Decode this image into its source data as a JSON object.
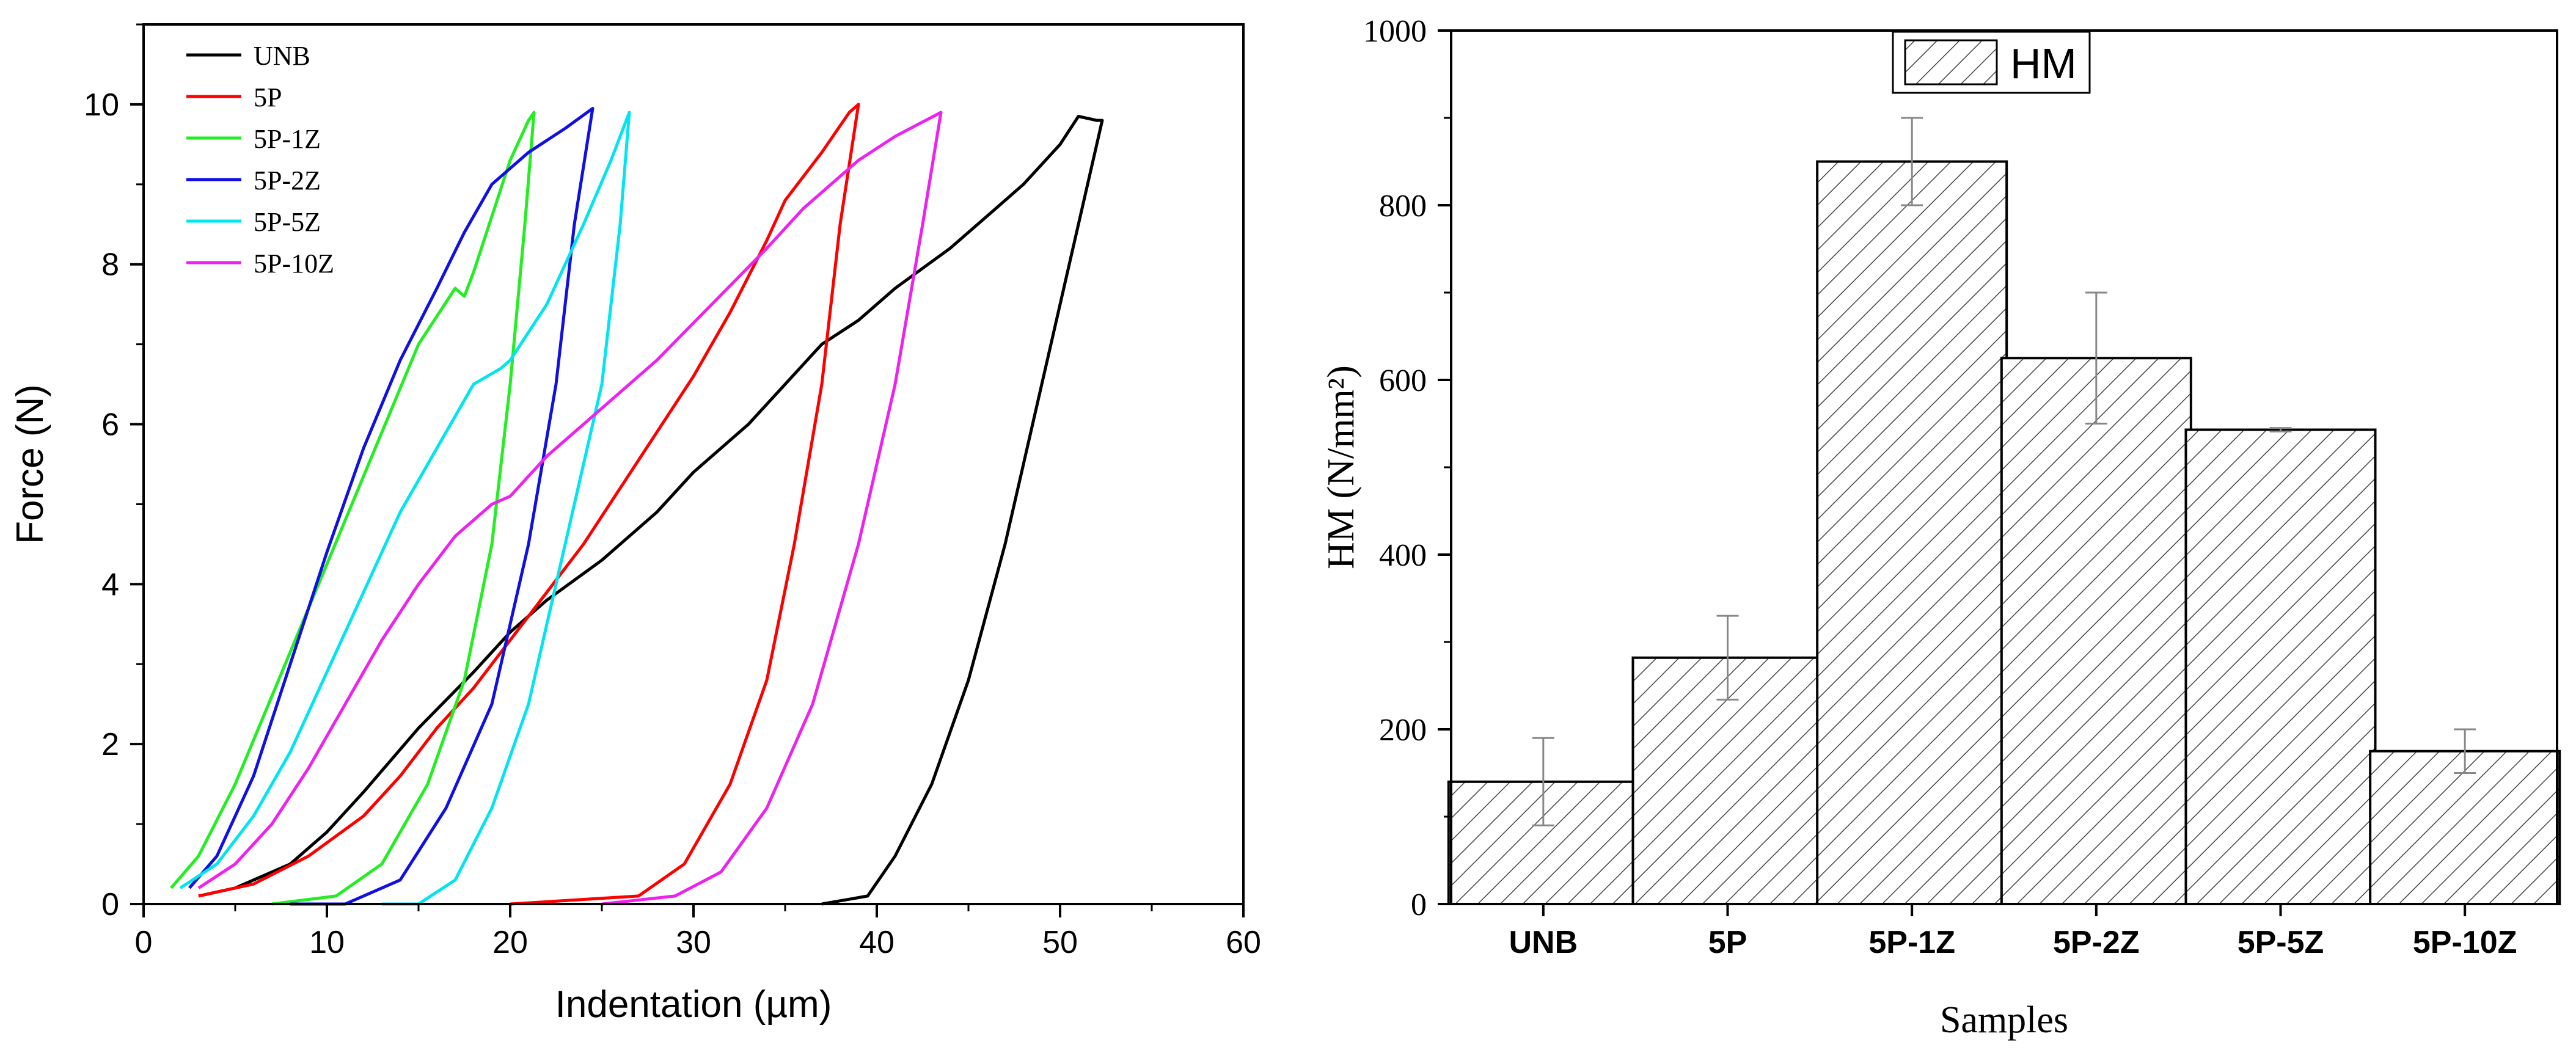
{
  "chart_data": [
    {
      "type": "line",
      "ylabel": "Force (N)",
      "xlabel": "Indentation (µm)",
      "xlim": [
        0,
        60
      ],
      "ylim": [
        0,
        11
      ],
      "x_ticks": [
        "0",
        "10",
        "20",
        "30",
        "40",
        "50",
        "60"
      ],
      "y_ticks": [
        "0",
        "2",
        "4",
        "6",
        "8",
        "10"
      ],
      "legend_position": "top-left",
      "series": [
        {
          "name": "UNB",
          "color": "#000000",
          "loading": [
            [
              3,
              0.1
            ],
            [
              5,
              0.2
            ],
            [
              8,
              0.5
            ],
            [
              10,
              0.9
            ],
            [
              12,
              1.4
            ],
            [
              15,
              2.2
            ],
            [
              18,
              2.9
            ],
            [
              20,
              3.4
            ],
            [
              22,
              3.8
            ],
            [
              25,
              4.3
            ],
            [
              28,
              4.9
            ],
            [
              30,
              5.4
            ],
            [
              33,
              6.0
            ],
            [
              35,
              6.5
            ],
            [
              37,
              7.0
            ],
            [
              39,
              7.3
            ],
            [
              41,
              7.7
            ],
            [
              44,
              8.2
            ],
            [
              46,
              8.6
            ],
            [
              48,
              9.0
            ],
            [
              50,
              9.5
            ],
            [
              51,
              9.85
            ],
            [
              52,
              9.8
            ]
          ],
          "unloading": [
            [
              52.3,
              9.8
            ],
            [
              51,
              8.5
            ],
            [
              49,
              6.5
            ],
            [
              47,
              4.5
            ],
            [
              45,
              2.8
            ],
            [
              43,
              1.5
            ],
            [
              41,
              0.6
            ],
            [
              39.5,
              0.1
            ],
            [
              37,
              0.0
            ]
          ]
        },
        {
          "name": "5P",
          "color": "#ff0000",
          "loading": [
            [
              3,
              0.1
            ],
            [
              6,
              0.25
            ],
            [
              9,
              0.6
            ],
            [
              12,
              1.1
            ],
            [
              14,
              1.6
            ],
            [
              16,
              2.2
            ],
            [
              18,
              2.7
            ],
            [
              20,
              3.3
            ],
            [
              22,
              3.9
            ],
            [
              24,
              4.5
            ],
            [
              26,
              5.2
            ],
            [
              28,
              5.9
            ],
            [
              30,
              6.6
            ],
            [
              32,
              7.4
            ],
            [
              34,
              8.3
            ],
            [
              35,
              8.8
            ],
            [
              37,
              9.4
            ],
            [
              38.5,
              9.9
            ],
            [
              39,
              10.0
            ]
          ],
          "unloading": [
            [
              39,
              10.0
            ],
            [
              38,
              8.5
            ],
            [
              37,
              6.5
            ],
            [
              35.5,
              4.5
            ],
            [
              34,
              2.8
            ],
            [
              32,
              1.5
            ],
            [
              29.5,
              0.5
            ],
            [
              27,
              0.1
            ],
            [
              20,
              0.0
            ]
          ]
        },
        {
          "name": "5P-1Z",
          "color": "#22ee22",
          "loading": [
            [
              1.5,
              0.2
            ],
            [
              3,
              0.6
            ],
            [
              5,
              1.5
            ],
            [
              7,
              2.6
            ],
            [
              9,
              3.7
            ],
            [
              11,
              4.8
            ],
            [
              13,
              5.9
            ],
            [
              15,
              7.0
            ],
            [
              17,
              7.7
            ],
            [
              17.5,
              7.6
            ],
            [
              18,
              7.9
            ],
            [
              20,
              9.3
            ],
            [
              21,
              9.8
            ],
            [
              21.3,
              9.9
            ]
          ],
          "unloading": [
            [
              21.3,
              9.9
            ],
            [
              20.8,
              8.5
            ],
            [
              20,
              6.5
            ],
            [
              19,
              4.5
            ],
            [
              17.5,
              2.8
            ],
            [
              15.5,
              1.5
            ],
            [
              13,
              0.5
            ],
            [
              10.5,
              0.1
            ],
            [
              7,
              0.0
            ]
          ]
        },
        {
          "name": "5P-2Z",
          "color": "#1010e0",
          "loading": [
            [
              2.5,
              0.2
            ],
            [
              4,
              0.6
            ],
            [
              6,
              1.6
            ],
            [
              8,
              3.0
            ],
            [
              10,
              4.4
            ],
            [
              12,
              5.7
            ],
            [
              14,
              6.8
            ],
            [
              16,
              7.7
            ],
            [
              17.5,
              8.4
            ],
            [
              19,
              9.0
            ],
            [
              21,
              9.4
            ],
            [
              23,
              9.7
            ],
            [
              24.5,
              9.95
            ]
          ],
          "unloading": [
            [
              24.5,
              9.95
            ],
            [
              23.5,
              8.5
            ],
            [
              22.5,
              6.5
            ],
            [
              21,
              4.5
            ],
            [
              19,
              2.5
            ],
            [
              16.5,
              1.2
            ],
            [
              14,
              0.3
            ],
            [
              11,
              0.0
            ],
            [
              8,
              0.0
            ]
          ]
        },
        {
          "name": "5P-5Z",
          "color": "#00e5ee",
          "loading": [
            [
              2,
              0.2
            ],
            [
              4,
              0.5
            ],
            [
              6,
              1.1
            ],
            [
              8,
              1.9
            ],
            [
              10,
              2.9
            ],
            [
              12,
              3.9
            ],
            [
              14,
              4.9
            ],
            [
              16,
              5.7
            ],
            [
              18,
              6.5
            ],
            [
              19.5,
              6.7
            ],
            [
              20,
              6.8
            ],
            [
              22,
              7.5
            ],
            [
              24,
              8.5
            ],
            [
              25.5,
              9.3
            ],
            [
              26.5,
              9.9
            ]
          ],
          "unloading": [
            [
              26.5,
              9.9
            ],
            [
              26,
              8.5
            ],
            [
              25,
              6.5
            ],
            [
              23,
              4.5
            ],
            [
              21,
              2.5
            ],
            [
              19,
              1.2
            ],
            [
              17,
              0.3
            ],
            [
              15,
              0.0
            ],
            [
              13,
              0.0
            ]
          ]
        },
        {
          "name": "5P-10Z",
          "color": "#ee22ee",
          "loading": [
            [
              3,
              0.2
            ],
            [
              5,
              0.5
            ],
            [
              7,
              1.0
            ],
            [
              9,
              1.7
            ],
            [
              11,
              2.5
            ],
            [
              13,
              3.3
            ],
            [
              15,
              4.0
            ],
            [
              17,
              4.6
            ],
            [
              19,
              5.0
            ],
            [
              20,
              5.1
            ],
            [
              22,
              5.6
            ],
            [
              25,
              6.2
            ],
            [
              28,
              6.8
            ],
            [
              31,
              7.5
            ],
            [
              34,
              8.2
            ],
            [
              36,
              8.7
            ],
            [
              39,
              9.3
            ],
            [
              41,
              9.6
            ],
            [
              43.5,
              9.9
            ]
          ],
          "unloading": [
            [
              43.5,
              9.9
            ],
            [
              42.5,
              8.5
            ],
            [
              41,
              6.5
            ],
            [
              39,
              4.5
            ],
            [
              36.5,
              2.5
            ],
            [
              34,
              1.2
            ],
            [
              31.5,
              0.4
            ],
            [
              29,
              0.1
            ],
            [
              25,
              0.0
            ]
          ]
        }
      ]
    },
    {
      "type": "bar",
      "ylabel": "HM (N/mm²)",
      "xlabel": "Samples",
      "ylim": [
        0,
        1000
      ],
      "y_ticks": [
        "0",
        "200",
        "400",
        "600",
        "800",
        "1000"
      ],
      "legend": [
        "HM"
      ],
      "legend_position": "top-center",
      "pattern": "diagonal hatch",
      "categories": [
        "UNB",
        "5P",
        "5P-1Z",
        "5P-2Z",
        "5P-5Z",
        "5P-10Z"
      ],
      "series": [
        {
          "name": "HM",
          "values": [
            140,
            282,
            850,
            625,
            543,
            175
          ],
          "errors": [
            50,
            48,
            50,
            75,
            2,
            25
          ]
        }
      ]
    }
  ]
}
